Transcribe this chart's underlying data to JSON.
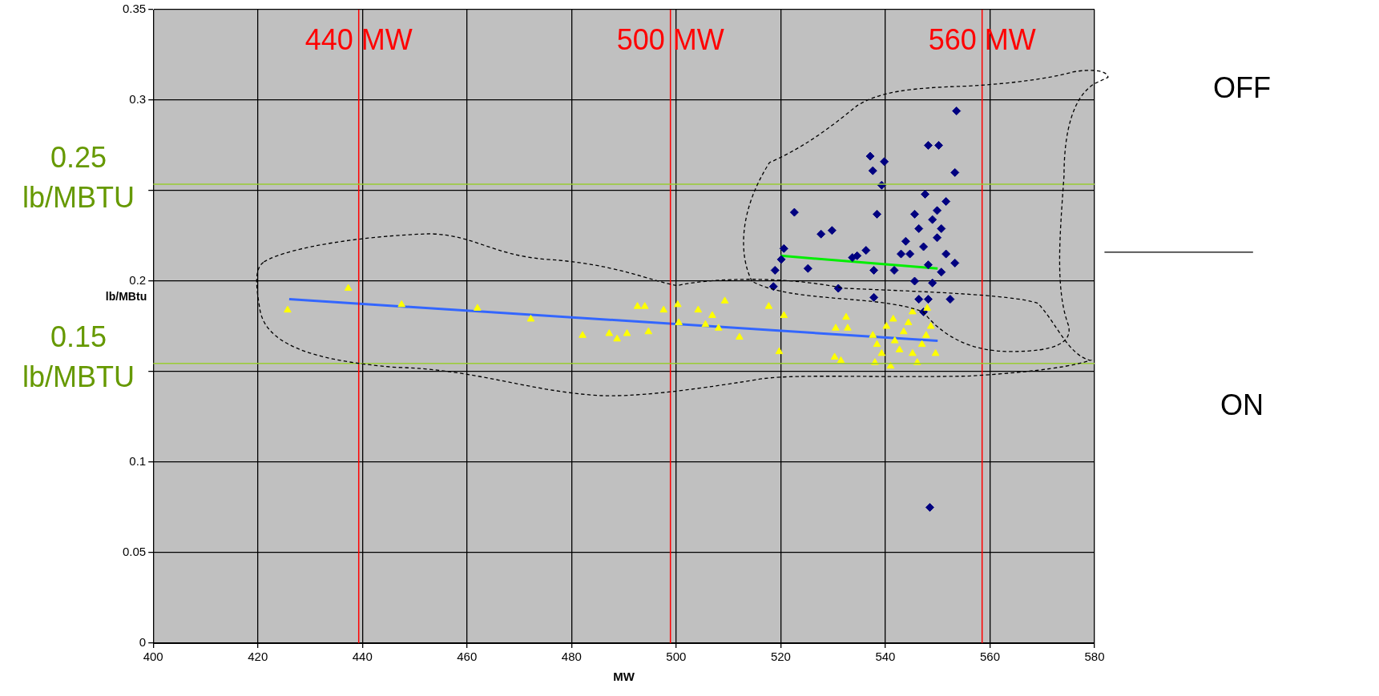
{
  "chart_data": {
    "type": "scatter",
    "xlabel": "MW",
    "ylabel": "lb/MBtu",
    "xlim": [
      400,
      580
    ],
    "xticks": [
      400,
      420,
      440,
      460,
      480,
      500,
      520,
      540,
      560,
      580
    ],
    "ylim": [
      0,
      0.35
    ],
    "yticks": [
      0,
      0.05,
      0.1,
      {
        "value": 0.15,
        "label": null
      },
      0.2,
      {
        "value": 0.25,
        "label": null
      },
      0.3,
      0.35
    ],
    "grid": true,
    "legend": false,
    "series": [
      {
        "type": "scatter",
        "marker": "triangle",
        "color": "#ffff00",
        "x": [
          425.7,
          437.3,
          447.5,
          462,
          472.2,
          482.1,
          487.2,
          488.7,
          490.6,
          492.6,
          494,
          494.7,
          497.6,
          500.3,
          500.5,
          504.2,
          505.6,
          506.9,
          508.1,
          509.3,
          512.1,
          517.7,
          519.7,
          520.6,
          530.3,
          530.5,
          531.5,
          532.5,
          532.8,
          537.6,
          538.4,
          539.3,
          540.2,
          541.5,
          541.8,
          542.7,
          543.5,
          544.4,
          545.2,
          546.1,
          547,
          547.8,
          548.7,
          549.6,
          548,
          545.2,
          538,
          541
        ],
        "values": [
          0.184,
          0.196,
          0.187,
          0.185,
          0.179,
          0.17,
          0.171,
          0.168,
          0.171,
          0.186,
          0.186,
          0.172,
          0.184,
          0.187,
          0.177,
          0.184,
          0.176,
          0.181,
          0.174,
          0.189,
          0.169,
          0.186,
          0.161,
          0.181,
          0.158,
          0.174,
          0.156,
          0.18,
          0.174,
          0.17,
          0.165,
          0.16,
          0.175,
          0.179,
          0.167,
          0.162,
          0.172,
          0.177,
          0.16,
          0.155,
          0.165,
          0.17,
          0.175,
          0.16,
          0.185,
          0.183,
          0.155,
          0.153
        ]
      },
      {
        "type": "scatter",
        "marker": "diamond",
        "color": "#000080",
        "x": [
          553.6,
          548.2,
          550.2,
          553.3,
          537.1,
          539.8,
          537.6,
          539.3,
          522.6,
          538.4,
          527.7,
          529.8,
          520.6,
          520.1,
          533.7,
          534.6,
          525.2,
          518.9,
          518.6,
          531,
          537.8,
          537.8,
          536.3,
          541.7,
          548.5,
          545.6,
          546.4,
          547.3,
          548.2,
          549,
          549.9,
          550.7,
          551.6,
          544.7,
          545.6,
          546.4,
          547.3,
          548.2,
          549.9,
          550.7,
          553.3,
          543.9,
          543,
          552.4,
          549,
          551.6,
          547.6
        ],
        "values": [
          0.294,
          0.275,
          0.275,
          0.26,
          0.269,
          0.266,
          0.261,
          0.253,
          0.238,
          0.237,
          0.226,
          0.228,
          0.218,
          0.212,
          0.213,
          0.214,
          0.207,
          0.206,
          0.197,
          0.196,
          0.191,
          0.206,
          0.217,
          0.206,
          0.075,
          0.237,
          0.229,
          0.219,
          0.209,
          0.199,
          0.239,
          0.229,
          0.215,
          0.215,
          0.2,
          0.19,
          0.183,
          0.19,
          0.224,
          0.205,
          0.21,
          0.222,
          0.215,
          0.19,
          0.234,
          0.244,
          0.248
        ]
      },
      {
        "type": "line",
        "marker": "none",
        "color": "#3366ff",
        "x": [
          426,
          550
        ],
        "values": [
          0.19,
          0.167
        ]
      },
      {
        "type": "line",
        "marker": "none",
        "color": "#00ee00",
        "x": [
          520,
          550
        ],
        "values": [
          0.214,
          0.207
        ]
      }
    ],
    "ref_lines": [
      {
        "axis": "x",
        "value": 439.3,
        "label": "440 MW",
        "color": "#ff0000"
      },
      {
        "axis": "x",
        "value": 498.9,
        "label": "500 MW",
        "color": "#ff0000"
      },
      {
        "axis": "x",
        "value": 558.5,
        "label": "560 MW",
        "color": "#ff0000"
      },
      {
        "axis": "y",
        "value": 0.2535,
        "label": "0.25 lb/MBTU",
        "color": "#99cc33"
      },
      {
        "axis": "y",
        "value": 0.1545,
        "label": "0.15 lb/MBTU",
        "color": "#99cc33"
      }
    ],
    "annotations": [
      "OFF",
      "ON"
    ]
  }
}
